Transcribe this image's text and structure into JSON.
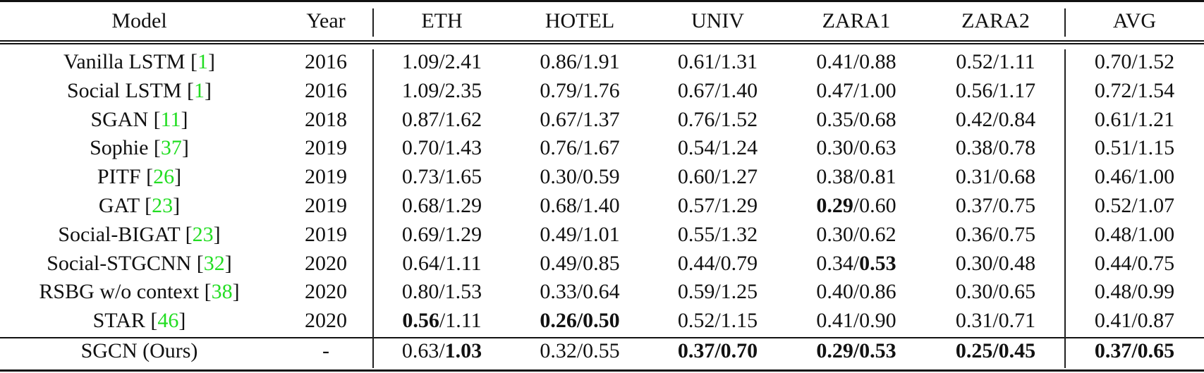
{
  "columns": [
    "Model",
    "Year",
    "ETH",
    "HOTEL",
    "UNIV",
    "ZARA1",
    "ZARA2",
    "AVG"
  ],
  "separator": "/",
  "ref_color": "#22dd22",
  "rows": [
    {
      "model": "Vanilla LSTM",
      "ref": "1",
      "year": "2016",
      "cells": [
        [
          "1.09",
          "2.41",
          false,
          false
        ],
        [
          "0.86",
          "1.91",
          false,
          false
        ],
        [
          "0.61",
          "1.31",
          false,
          false
        ],
        [
          "0.41",
          "0.88",
          false,
          false
        ],
        [
          "0.52",
          "1.11",
          false,
          false
        ],
        [
          "0.70",
          "1.52",
          false,
          false
        ]
      ]
    },
    {
      "model": "Social LSTM",
      "ref": "1",
      "year": "2016",
      "cells": [
        [
          "1.09",
          "2.35",
          false,
          false
        ],
        [
          "0.79",
          "1.76",
          false,
          false
        ],
        [
          "0.67",
          "1.40",
          false,
          false
        ],
        [
          "0.47",
          "1.00",
          false,
          false
        ],
        [
          "0.56",
          "1.17",
          false,
          false
        ],
        [
          "0.72",
          "1.54",
          false,
          false
        ]
      ]
    },
    {
      "model": "SGAN",
      "ref": "11",
      "year": "2018",
      "cells": [
        [
          "0.87",
          "1.62",
          false,
          false
        ],
        [
          "0.67",
          "1.37",
          false,
          false
        ],
        [
          "0.76",
          "1.52",
          false,
          false
        ],
        [
          "0.35",
          "0.68",
          false,
          false
        ],
        [
          "0.42",
          "0.84",
          false,
          false
        ],
        [
          "0.61",
          "1.21",
          false,
          false
        ]
      ]
    },
    {
      "model": "Sophie",
      "ref": "37",
      "year": "2019",
      "cells": [
        [
          "0.70",
          "1.43",
          false,
          false
        ],
        [
          "0.76",
          "1.67",
          false,
          false
        ],
        [
          "0.54",
          "1.24",
          false,
          false
        ],
        [
          "0.30",
          "0.63",
          false,
          false
        ],
        [
          "0.38",
          "0.78",
          false,
          false
        ],
        [
          "0.51",
          "1.15",
          false,
          false
        ]
      ]
    },
    {
      "model": "PITF",
      "ref": "26",
      "year": "2019",
      "cells": [
        [
          "0.73",
          "1.65",
          false,
          false
        ],
        [
          "0.30",
          "0.59",
          false,
          false
        ],
        [
          "0.60",
          "1.27",
          false,
          false
        ],
        [
          "0.38",
          "0.81",
          false,
          false
        ],
        [
          "0.31",
          "0.68",
          false,
          false
        ],
        [
          "0.46",
          "1.00",
          false,
          false
        ]
      ]
    },
    {
      "model": "GAT",
      "ref": "23",
      "year": "2019",
      "cells": [
        [
          "0.68",
          "1.29",
          false,
          false
        ],
        [
          "0.68",
          "1.40",
          false,
          false
        ],
        [
          "0.57",
          "1.29",
          false,
          false
        ],
        [
          "0.29",
          "0.60",
          true,
          false
        ],
        [
          "0.37",
          "0.75",
          false,
          false
        ],
        [
          "0.52",
          "1.07",
          false,
          false
        ]
      ]
    },
    {
      "model": "Social-BIGAT",
      "ref": "23",
      "year": "2019",
      "cells": [
        [
          "0.69",
          "1.29",
          false,
          false
        ],
        [
          "0.49",
          "1.01",
          false,
          false
        ],
        [
          "0.55",
          "1.32",
          false,
          false
        ],
        [
          "0.30",
          "0.62",
          false,
          false
        ],
        [
          "0.36",
          "0.75",
          false,
          false
        ],
        [
          "0.48",
          "1.00",
          false,
          false
        ]
      ]
    },
    {
      "model": "Social-STGCNN",
      "ref": "32",
      "year": "2020",
      "cells": [
        [
          "0.64",
          "1.11",
          false,
          false
        ],
        [
          "0.49",
          "0.85",
          false,
          false
        ],
        [
          "0.44",
          "0.79",
          false,
          false
        ],
        [
          "0.34",
          "0.53",
          false,
          true
        ],
        [
          "0.30",
          "0.48",
          false,
          false
        ],
        [
          "0.44",
          "0.75",
          false,
          false
        ]
      ]
    },
    {
      "model": "RSBG w/o context",
      "ref": "38",
      "year": "2020",
      "cells": [
        [
          "0.80",
          "1.53",
          false,
          false
        ],
        [
          "0.33",
          "0.64",
          false,
          false
        ],
        [
          "0.59",
          "1.25",
          false,
          false
        ],
        [
          "0.40",
          "0.86",
          false,
          false
        ],
        [
          "0.30",
          "0.65",
          false,
          false
        ],
        [
          "0.48",
          "0.99",
          false,
          false
        ]
      ]
    },
    {
      "model": "STAR",
      "ref": "46",
      "year": "2020",
      "cells": [
        [
          "0.56",
          "1.11",
          true,
          false
        ],
        [
          "0.26",
          "0.50",
          true,
          true
        ],
        [
          "0.52",
          "1.15",
          false,
          false
        ],
        [
          "0.41",
          "0.90",
          false,
          false
        ],
        [
          "0.31",
          "0.71",
          false,
          false
        ],
        [
          "0.41",
          "0.87",
          false,
          false
        ]
      ]
    },
    {
      "model": "SGCN (Ours)",
      "ref": "",
      "year": "-",
      "cells": [
        [
          "0.63",
          "1.03",
          false,
          true
        ],
        [
          "0.32",
          "0.55",
          false,
          false
        ],
        [
          "0.37",
          "0.70",
          true,
          true
        ],
        [
          "0.29",
          "0.53",
          true,
          true
        ],
        [
          "0.25",
          "0.45",
          true,
          true
        ],
        [
          "0.37",
          "0.65",
          true,
          true
        ]
      ]
    }
  ]
}
